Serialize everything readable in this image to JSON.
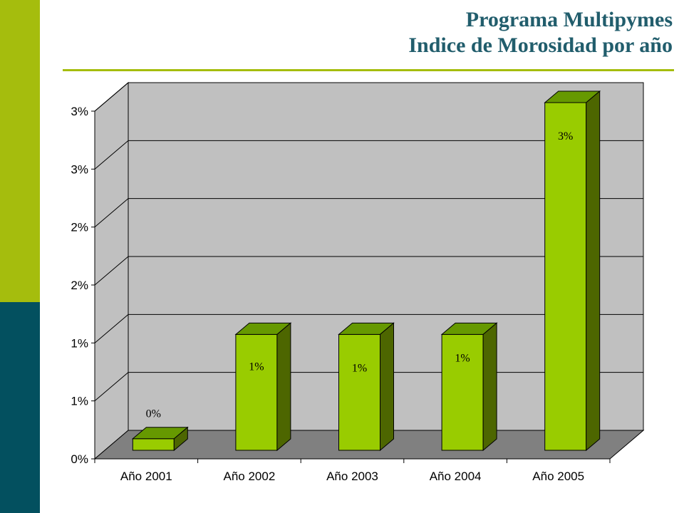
{
  "slide": {
    "title_line1": "Programa Multipymes",
    "title_line2": "Indice de Morosidad por año",
    "colors": {
      "accent_top": "#a5bd0d",
      "accent_bottom": "#03505f",
      "title": "#215d6c",
      "rule": "#a5bd0d"
    }
  },
  "chart_data": {
    "type": "bar",
    "title": "",
    "xlabel": "",
    "ylabel": "",
    "categories": [
      "Año 2001",
      "Año 2002",
      "Año 2003",
      "Año 2004",
      "Año 2005"
    ],
    "values": [
      0.001,
      0.01,
      0.01,
      0.01,
      0.03
    ],
    "data_labels": [
      "0%",
      "1%",
      "1%",
      "1%",
      "3%"
    ],
    "y_ticks": [
      0,
      0.005,
      0.01,
      0.015,
      0.02,
      0.025,
      0.03
    ],
    "y_tick_labels": [
      "0%",
      "1%",
      "1%",
      "2%",
      "2%",
      "3%",
      "3%"
    ],
    "ylim": [
      0,
      0.03
    ],
    "grid": true,
    "legend": "none",
    "style": "3d",
    "colors": {
      "bar_front": "#99cc00",
      "bar_top": "#669900",
      "bar_side": "#4d6600",
      "wall": "#c0c0c0",
      "floor": "#808080"
    }
  }
}
